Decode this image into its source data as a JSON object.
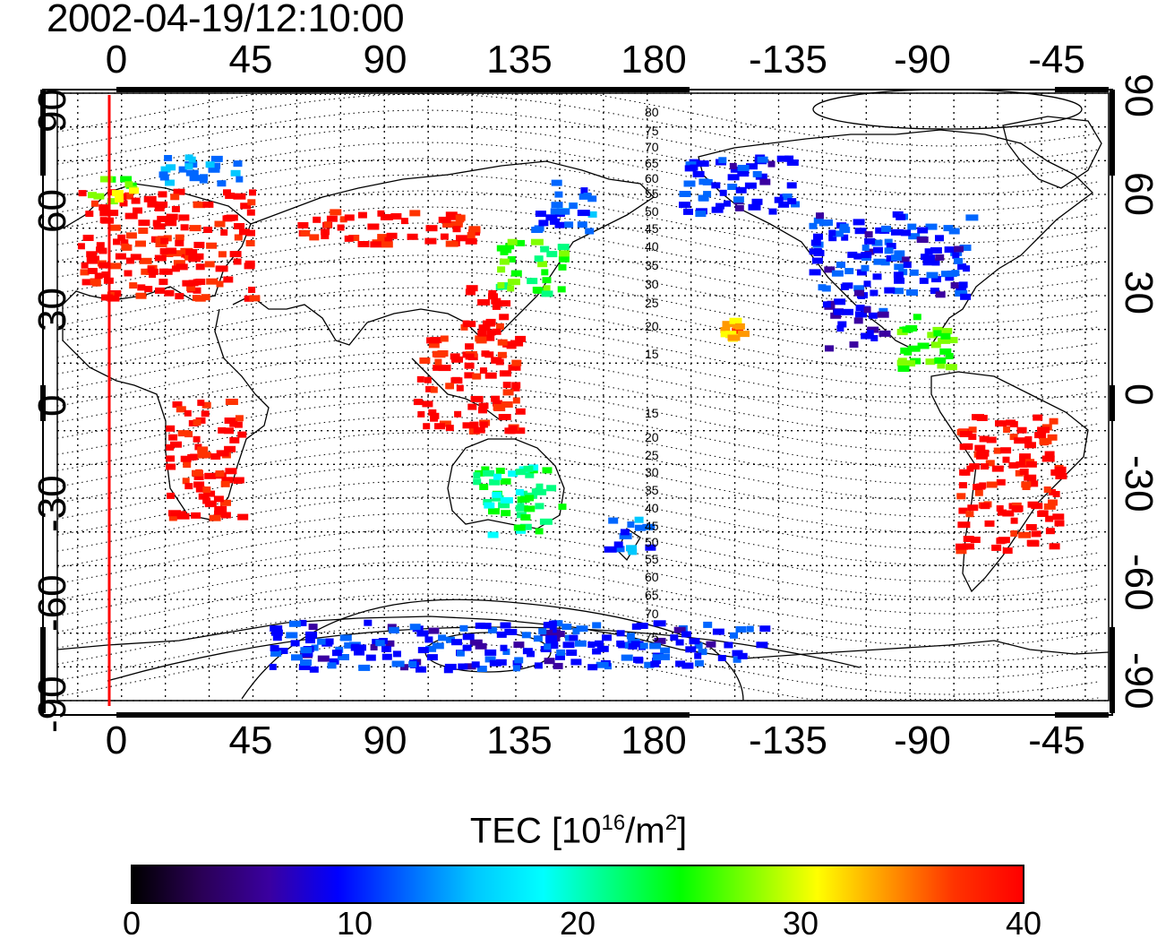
{
  "title": "2002-04-19/12:10:00",
  "axes": {
    "top_ticks": [
      "0",
      "45",
      "90",
      "135",
      "180",
      "-135",
      "-90",
      "-45"
    ],
    "bottom_ticks": [
      "0",
      "45",
      "90",
      "135",
      "180",
      "-135",
      "-90",
      "-45"
    ],
    "left_ticks": [
      "90",
      "60",
      "30",
      "0",
      "-30",
      "-60",
      "-90"
    ],
    "right_ticks": [
      "90",
      "60",
      "30",
      "0",
      "-30",
      "-60",
      "-90"
    ]
  },
  "magnetic_latitude_labels": [
    "80",
    "75",
    "70",
    "65",
    "60",
    "55",
    "50",
    "45",
    "40",
    "35",
    "30",
    "25",
    "20",
    "15",
    "15",
    "20",
    "25",
    "30",
    "35",
    "40",
    "45",
    "50",
    "55",
    "60",
    "65",
    "70",
    "75"
  ],
  "colorbar": {
    "title_prefix": "TEC  [10",
    "title_exp": "16",
    "title_mid": "/m",
    "title_exp2": "2",
    "title_suffix": "]",
    "ticks": [
      "0",
      "10",
      "20",
      "30",
      "40"
    ],
    "colors": [
      "#000000",
      "#2a0055",
      "#3a00a0",
      "#0000ff",
      "#0066ff",
      "#00c8ff",
      "#00ffff",
      "#00ff80",
      "#00ff00",
      "#80ff00",
      "#ffff00",
      "#ff9900",
      "#ff3300",
      "#ff0000"
    ]
  },
  "colors": {
    "tec_low": "#3a00a0",
    "tec_mid": "#00ff80",
    "tec_high": "#ff0000",
    "midnight_line": "#ff0000"
  },
  "chart_data": {
    "type": "heatmap",
    "xlim": [
      -22,
      338
    ],
    "ylim": [
      -90,
      90
    ],
    "value_range": [
      0,
      40
    ],
    "regions": [
      {
        "lon": [
          -15,
          45
        ],
        "lat": [
          30,
          62
        ],
        "tec": 40
      },
      {
        "lon": [
          -12,
          5
        ],
        "lat": [
          58,
          66
        ],
        "tec": 28
      },
      {
        "lon": [
          5,
          40
        ],
        "lat": [
          64,
          72
        ],
        "tec": 14
      },
      {
        "lon": [
          60,
          120
        ],
        "lat": [
          46,
          56
        ],
        "tec": 40
      },
      {
        "lon": [
          115,
          130
        ],
        "lat": [
          20,
          34
        ],
        "tec": 40
      },
      {
        "lon": [
          128,
          150
        ],
        "lat": [
          30,
          48
        ],
        "tec": 25
      },
      {
        "lon": [
          140,
          160
        ],
        "lat": [
          50,
          65
        ],
        "tec": 12
      },
      {
        "lon": [
          100,
          135
        ],
        "lat": [
          -10,
          20
        ],
        "tec": 40
      },
      {
        "lon": [
          15,
          40
        ],
        "lat": [
          -35,
          0
        ],
        "tec": 40
      },
      {
        "lon": [
          120,
          150
        ],
        "lat": [
          -40,
          -20
        ],
        "tec": 22
      },
      {
        "lon": [
          165,
          180
        ],
        "lat": [
          -45,
          -35
        ],
        "tec": 12
      },
      {
        "lon": [
          190,
          230
        ],
        "lat": [
          55,
          72
        ],
        "tec": 10
      },
      {
        "lon": [
          235,
          290
        ],
        "lat": [
          30,
          55
        ],
        "tec": 10
      },
      {
        "lon": [
          240,
          260
        ],
        "lat": [
          15,
          30
        ],
        "tec": 8
      },
      {
        "lon": [
          265,
          285
        ],
        "lat": [
          8,
          25
        ],
        "tec": 26
      },
      {
        "lon": [
          285,
          320
        ],
        "lat": [
          -45,
          -5
        ],
        "tec": 40
      },
      {
        "lon": [
          205,
          212
        ],
        "lat": [
          18,
          24
        ],
        "tec": 33
      },
      {
        "lon": [
          50,
          220
        ],
        "lat": [
          -80,
          -66
        ],
        "tec": 10
      }
    ]
  }
}
